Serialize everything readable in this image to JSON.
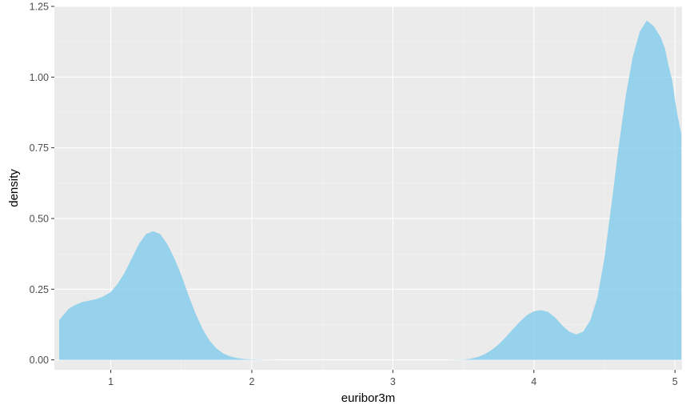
{
  "chart_data": {
    "type": "area",
    "xlabel": "euribor3m",
    "ylabel": "density",
    "xlim": [
      0.6,
      5.05
    ],
    "ylim": [
      -0.035,
      1.25
    ],
    "x_ticks": [
      1,
      2,
      3,
      4,
      5
    ],
    "x_tick_labels": [
      "1",
      "2",
      "3",
      "4",
      "5"
    ],
    "y_ticks": [
      0,
      0.25,
      0.5,
      0.75,
      1.0,
      1.25
    ],
    "y_tick_labels": [
      "0.00",
      "0.25",
      "0.50",
      "0.75",
      "1.00",
      "1.25"
    ],
    "grid": true,
    "legend": "none",
    "colors": {
      "fill": "#87CEEB",
      "fill_opacity": 0.85,
      "panel": "#EBEBEB",
      "grid_major": "#FFFFFF",
      "grid_minor": "#F5F5F5"
    },
    "series": [
      {
        "x": [
          0.634,
          0.65,
          0.7,
          0.75,
          0.8,
          0.85,
          0.9,
          0.95,
          1.0,
          1.05,
          1.1,
          1.15,
          1.2,
          1.25,
          1.3,
          1.35,
          1.4,
          1.45,
          1.5,
          1.55,
          1.6,
          1.65,
          1.7,
          1.75,
          1.8,
          1.85,
          1.9,
          1.95,
          2.0,
          2.05,
          2.1,
          2.2,
          2.5,
          3.0,
          3.4,
          3.5,
          3.55,
          3.6,
          3.65,
          3.7,
          3.75,
          3.8,
          3.85,
          3.9,
          3.95,
          4.0,
          4.05,
          4.1,
          4.15,
          4.2,
          4.25,
          4.3,
          4.35,
          4.4,
          4.45,
          4.5,
          4.55,
          4.6,
          4.65,
          4.7,
          4.75,
          4.8,
          4.85,
          4.9,
          4.93,
          4.95,
          4.98,
          5.0,
          5.02,
          5.045
        ],
        "y": [
          0.14,
          0.15,
          0.18,
          0.195,
          0.205,
          0.21,
          0.215,
          0.225,
          0.24,
          0.27,
          0.31,
          0.36,
          0.41,
          0.445,
          0.455,
          0.445,
          0.41,
          0.36,
          0.3,
          0.23,
          0.165,
          0.11,
          0.068,
          0.04,
          0.022,
          0.012,
          0.006,
          0.003,
          0.0015,
          0.0006,
          0.0002,
          0.0,
          0.0,
          0.0,
          0.0,
          0.001,
          0.004,
          0.01,
          0.02,
          0.035,
          0.055,
          0.08,
          0.108,
          0.135,
          0.158,
          0.172,
          0.176,
          0.17,
          0.15,
          0.122,
          0.1,
          0.09,
          0.1,
          0.14,
          0.22,
          0.36,
          0.55,
          0.75,
          0.93,
          1.07,
          1.16,
          1.2,
          1.18,
          1.14,
          1.1,
          1.05,
          0.99,
          0.92,
          0.86,
          0.8
        ]
      }
    ]
  }
}
